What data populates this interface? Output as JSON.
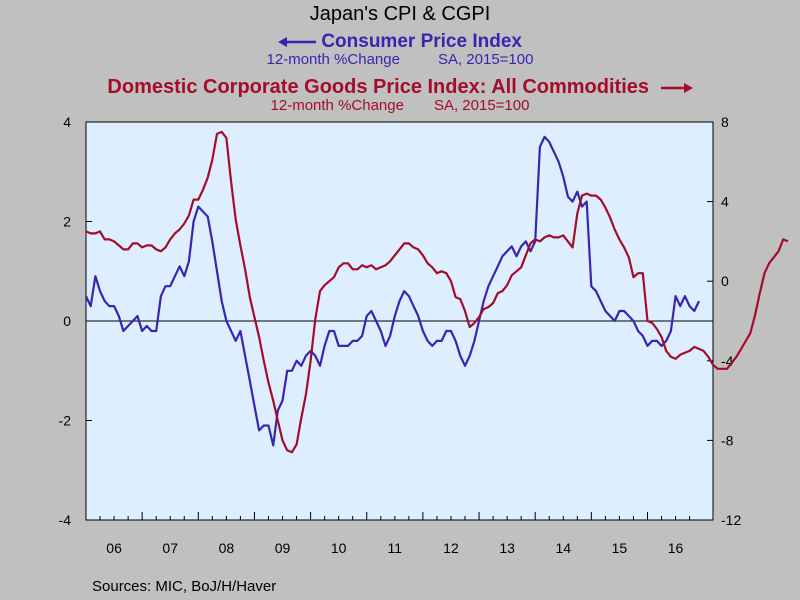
{
  "chart_data": {
    "type": "line",
    "title": "Japan's CPI & CGPI",
    "series": [
      {
        "name": "Consumer Price Index",
        "units": "12-month %Change",
        "basis": "SA, 2015=100",
        "axis": "left",
        "arrow": "left",
        "color": "#3a24b0",
        "x_start": "2006-01",
        "values": [
          0.5,
          0.3,
          0.9,
          0.6,
          0.4,
          0.3,
          0.3,
          0.1,
          -0.2,
          -0.1,
          0.0,
          0.1,
          -0.2,
          -0.1,
          -0.2,
          -0.2,
          0.5,
          0.7,
          0.7,
          0.9,
          1.1,
          0.9,
          1.2,
          2.0,
          2.3,
          2.2,
          2.1,
          1.6,
          1.0,
          0.4,
          0.0,
          -0.2,
          -0.4,
          -0.2,
          -0.7,
          -1.2,
          -1.7,
          -2.2,
          -2.1,
          -2.1,
          -2.5,
          -1.8,
          -1.6,
          -1.0,
          -1.0,
          -0.8,
          -0.9,
          -0.7,
          -0.6,
          -0.7,
          -0.9,
          -0.5,
          -0.2,
          -0.2,
          -0.5,
          -0.5,
          -0.5,
          -0.4,
          -0.4,
          -0.3,
          0.1,
          0.2,
          0.0,
          -0.2,
          -0.5,
          -0.3,
          0.1,
          0.4,
          0.6,
          0.5,
          0.3,
          0.1,
          -0.2,
          -0.4,
          -0.5,
          -0.4,
          -0.4,
          -0.2,
          -0.2,
          -0.4,
          -0.7,
          -0.9,
          -0.7,
          -0.4,
          0.0,
          0.4,
          0.7,
          0.9,
          1.1,
          1.3,
          1.4,
          1.5,
          1.3,
          1.5,
          1.6,
          1.4,
          1.6,
          3.5,
          3.7,
          3.6,
          3.4,
          3.2,
          2.9,
          2.5,
          2.4,
          2.6,
          2.3,
          2.4,
          0.7,
          0.6,
          0.4,
          0.2,
          0.1,
          0.0,
          0.2,
          0.2,
          0.1,
          0.0,
          -0.2,
          -0.3,
          -0.5,
          -0.4,
          -0.4,
          -0.5,
          -0.4,
          -0.2,
          0.5,
          0.3,
          0.5,
          0.3,
          0.2,
          0.4
        ]
      },
      {
        "name": "Domestic Corporate Goods Price Index: All Commodities",
        "units": "12-month %Change",
        "basis": "SA, 2015=100",
        "axis": "right",
        "arrow": "right",
        "color": "#a50c2a",
        "x_start": "2006-01",
        "values": [
          2.5,
          2.4,
          2.4,
          2.5,
          2.1,
          2.1,
          2.0,
          1.8,
          1.6,
          1.6,
          1.9,
          1.9,
          1.7,
          1.8,
          1.8,
          1.6,
          1.5,
          1.7,
          2.1,
          2.4,
          2.6,
          2.9,
          3.3,
          4.1,
          4.1,
          4.6,
          5.2,
          6.1,
          7.4,
          7.5,
          7.2,
          5.0,
          3.1,
          1.8,
          0.6,
          -0.8,
          -1.8,
          -2.8,
          -4.0,
          -5.1,
          -6.0,
          -7.0,
          -8.0,
          -8.5,
          -8.6,
          -8.2,
          -6.9,
          -5.7,
          -4.0,
          -1.9,
          -0.5,
          -0.2,
          0.0,
          0.2,
          0.7,
          0.9,
          0.9,
          0.6,
          0.6,
          0.8,
          0.7,
          0.8,
          0.6,
          0.7,
          0.8,
          1.0,
          1.3,
          1.6,
          1.9,
          1.9,
          1.7,
          1.6,
          1.3,
          0.9,
          0.7,
          0.4,
          0.5,
          0.4,
          0.0,
          -0.8,
          -0.9,
          -1.5,
          -2.3,
          -2.1,
          -1.8,
          -1.4,
          -1.3,
          -1.1,
          -0.6,
          -0.5,
          -0.2,
          0.3,
          0.5,
          0.7,
          1.3,
          1.9,
          2.1,
          2.0,
          2.2,
          2.3,
          2.2,
          2.2,
          2.3,
          2.0,
          1.7,
          3.4,
          4.3,
          4.4,
          4.3,
          4.3,
          4.1,
          3.7,
          3.2,
          2.6,
          2.1,
          1.7,
          1.2,
          0.2,
          0.4,
          0.4,
          -2.0,
          -2.1,
          -2.4,
          -2.8,
          -3.5,
          -3.8,
          -3.9,
          -3.7,
          -3.6,
          -3.5,
          -3.3,
          -3.4,
          -3.5,
          -3.8,
          -4.2,
          -4.4,
          -4.4,
          -4.4,
          -4.1,
          -3.8,
          -3.4,
          -3.0,
          -2.6,
          -1.7,
          -0.6,
          0.4,
          0.9,
          1.2,
          1.5,
          2.1,
          2.0
        ]
      }
    ],
    "x_tick_labels": [
      "06",
      "07",
      "08",
      "09",
      "10",
      "11",
      "12",
      "13",
      "14",
      "15",
      "16"
    ],
    "x_tick_years": [
      2006,
      2007,
      2008,
      2009,
      2010,
      2011,
      2012,
      2013,
      2014,
      2015,
      2016
    ],
    "xlim": [
      "2006-01",
      "2017-03"
    ],
    "ylim_left": [
      -4,
      4
    ],
    "ylim_right": [
      -12,
      8
    ],
    "y_ticks_left": [
      4,
      2,
      0,
      -2,
      -4
    ],
    "y_ticks_right": [
      8,
      4,
      0,
      -4,
      -8,
      -12
    ],
    "zero_line_left": 0,
    "grid": false,
    "plot_background": "#ddeeff",
    "page_background": "#c0c0c0",
    "source": "Sources:  MIC, BoJ/H/Haver"
  }
}
